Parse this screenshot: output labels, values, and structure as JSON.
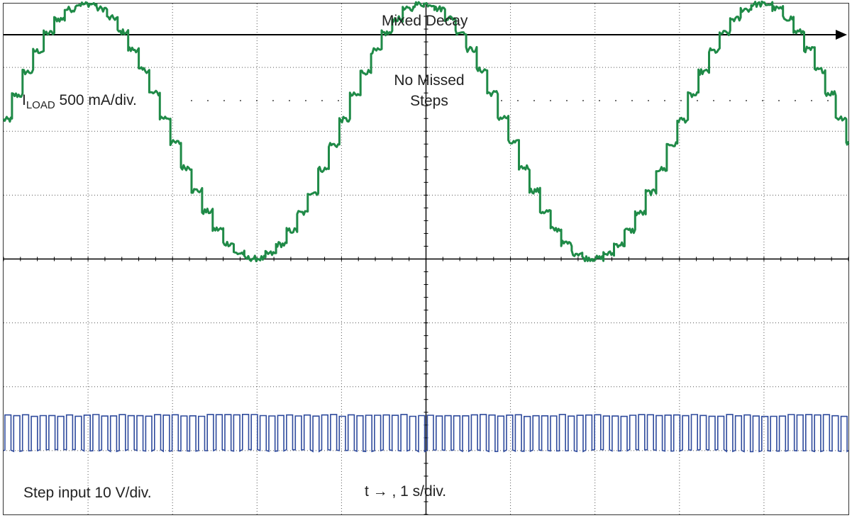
{
  "chart_data": {
    "type": "line",
    "title": "Mixed Decay",
    "annotation": [
      "No Missed",
      "Steps"
    ],
    "x_axis_label": "t → , 1 s/div.",
    "x_divisions": 10,
    "y_divisions": 8,
    "grid": "dotted",
    "colors": {
      "current": "#1f8a47",
      "step": "#2e4a9c",
      "axis": "#000000"
    },
    "series": [
      {
        "name_prefix": "I",
        "name_sub": "LOAD",
        "name_suffix": " 500 mA/div.",
        "shape": "stepped-sine",
        "amplitude_div": 2.0,
        "offset_div": 2.0,
        "period_div": 4.0,
        "phase_at_left_div": -0.9,
        "steps_per_period": 32
      },
      {
        "name": "Step input 10 V/div.",
        "shape": "pulse-train",
        "high_div": -2.45,
        "low_div": -3.0,
        "pulses": 96
      }
    ]
  }
}
